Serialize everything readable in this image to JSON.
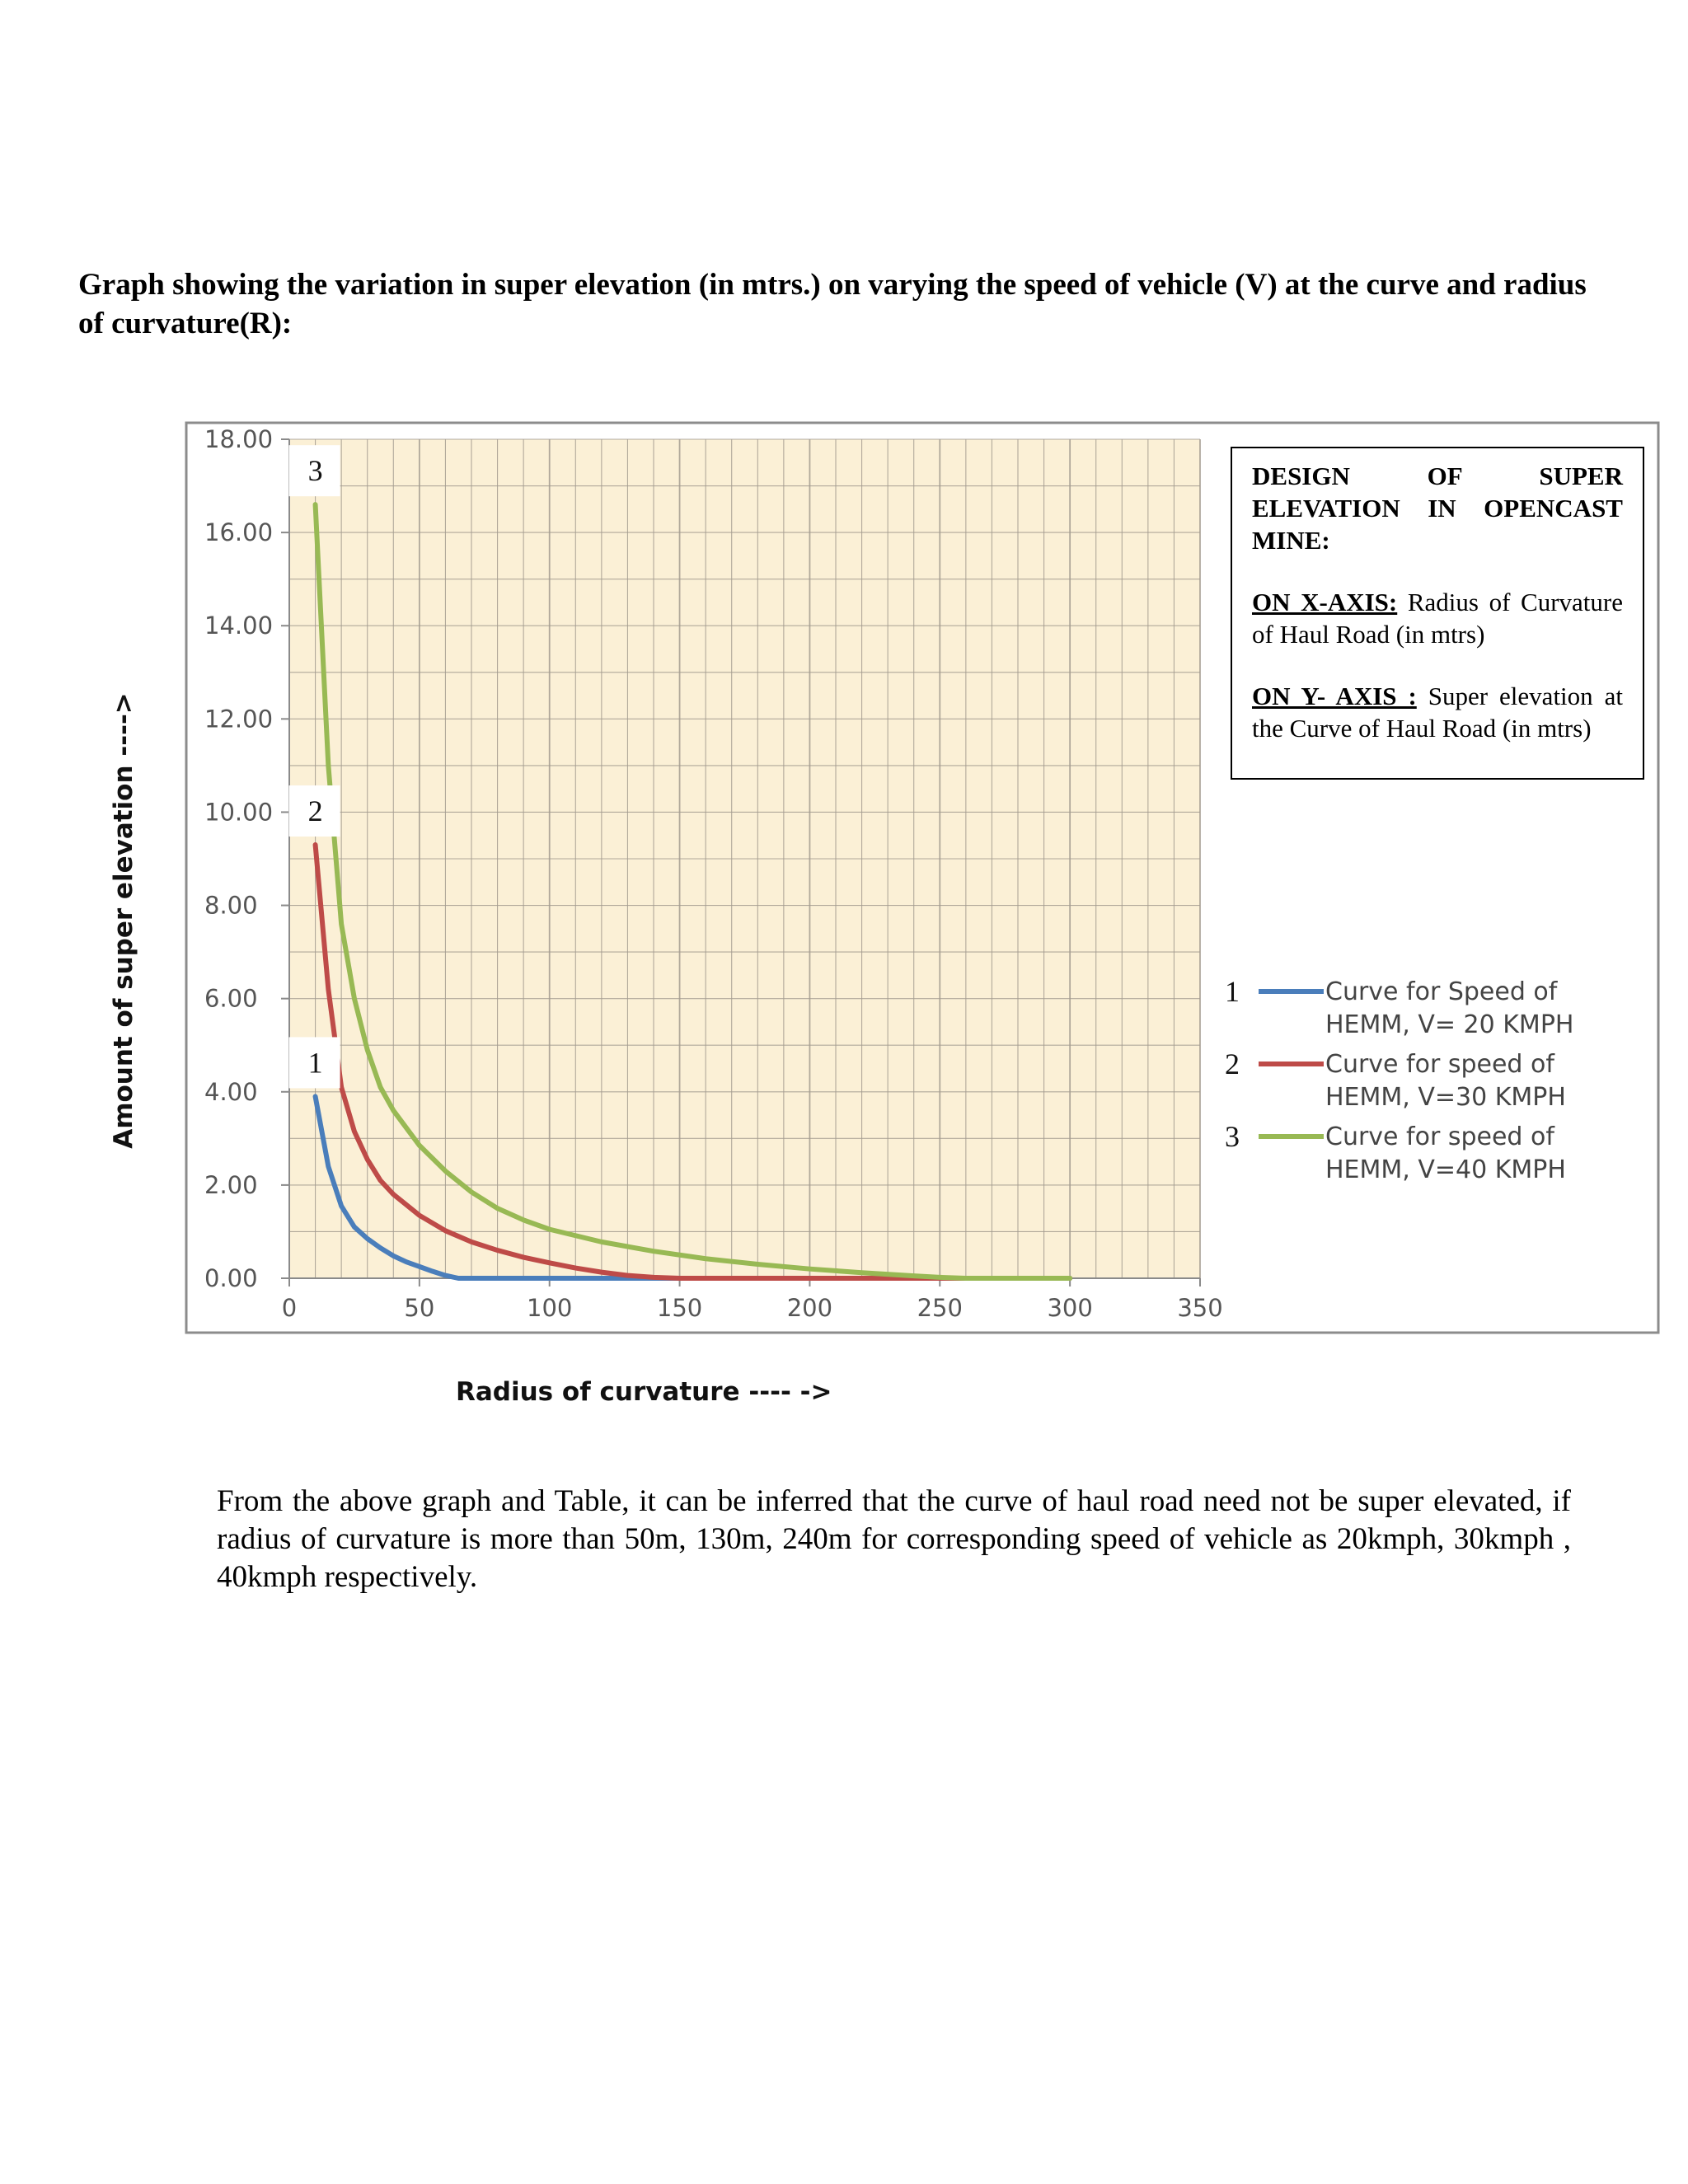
{
  "heading": "Graph showing the variation in super elevation (in mtrs.) on varying the speed of vehicle (V) at the curve and radius of curvature(R):",
  "infobox": {
    "title": "DESIGN OF SUPER ELEVATION IN OPENCAST MINE:",
    "x_label": "ON X-AXIS:",
    "x_text": "Radius of Curvature of Haul Road (in mtrs)",
    "y_label": "ON Y- AXIS :",
    "y_text": "Super elevation at the Curve of Haul Road (in mtrs)"
  },
  "conclusion": "From the above graph and Table, it can be inferred that the curve of haul road need not be super elevated, if radius of curvature is more than 50m, 130m, 240m for corresponding speed of vehicle as 20kmph, 30kmph , 40kmph respectively.",
  "colors": {
    "plot_background": "#fbf0d6",
    "grid": "#a49c90",
    "series_1": "#4a7ebb",
    "series_2": "#be4b48",
    "series_3": "#98b954"
  },
  "chart_data": {
    "type": "line",
    "title": "",
    "xlabel": "Radius of curvature ---- ->",
    "ylabel": "Amount of super elevation ---->",
    "xlim": [
      0,
      350
    ],
    "ylim": [
      0,
      18
    ],
    "xticks": [
      "0",
      "50",
      "100",
      "150",
      "200",
      "250",
      "300",
      "350"
    ],
    "yticks": [
      "0.00",
      "2.00",
      "4.00",
      "6.00",
      "8.00",
      "10.00",
      "12.00",
      "14.00",
      "16.00",
      "18.00"
    ],
    "grid": true,
    "legend_position": "right",
    "series": [
      {
        "name": "Curve for Speed of HEMM, V= 20 KMPH",
        "marker": "1",
        "x": [
          10,
          15,
          20,
          25,
          30,
          35,
          40,
          45,
          50,
          55,
          60,
          65,
          70,
          80,
          100,
          150,
          200,
          250,
          300
        ],
        "y": [
          3.9,
          2.4,
          1.55,
          1.1,
          0.85,
          0.65,
          0.48,
          0.35,
          0.25,
          0.15,
          0.06,
          0.0,
          0.0,
          0.0,
          0.0,
          0.0,
          0.0,
          0.0,
          0.0
        ]
      },
      {
        "name": "Curve for speed of HEMM, V=30 KMPH",
        "marker": "2",
        "x": [
          10,
          15,
          20,
          25,
          30,
          35,
          40,
          50,
          60,
          70,
          80,
          90,
          100,
          110,
          120,
          130,
          140,
          150,
          200,
          250,
          300
        ],
        "y": [
          9.3,
          6.2,
          4.1,
          3.15,
          2.55,
          2.1,
          1.8,
          1.35,
          1.02,
          0.78,
          0.6,
          0.45,
          0.33,
          0.22,
          0.13,
          0.06,
          0.02,
          0.0,
          0.0,
          0.0,
          0.0
        ]
      },
      {
        "name": "Curve for speed of HEMM, V=40 KMPH",
        "marker": "3",
        "x": [
          10,
          15,
          20,
          25,
          30,
          35,
          40,
          50,
          60,
          70,
          80,
          90,
          100,
          120,
          140,
          160,
          180,
          200,
          220,
          240,
          250,
          260,
          280,
          300
        ],
        "y": [
          16.6,
          11.0,
          7.6,
          6.0,
          4.9,
          4.1,
          3.6,
          2.85,
          2.3,
          1.85,
          1.5,
          1.25,
          1.05,
          0.78,
          0.58,
          0.42,
          0.3,
          0.2,
          0.12,
          0.05,
          0.02,
          0.0,
          0.0,
          0.0
        ]
      }
    ]
  }
}
